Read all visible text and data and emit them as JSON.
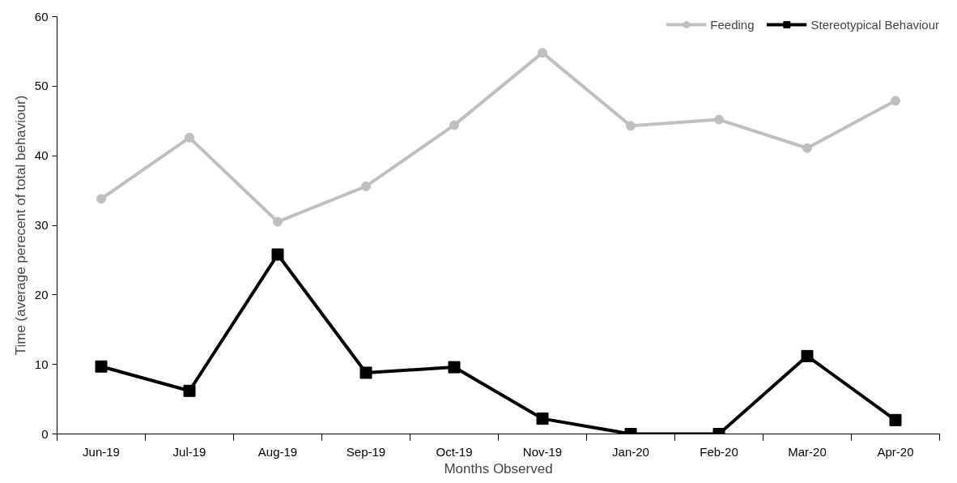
{
  "chart_data": {
    "type": "line",
    "xlabel": "Months Observed",
    "ylabel": "Time (average perecent of total behaviour)",
    "categories": [
      "Jun-19",
      "Jul-19",
      "Aug-19",
      "Sep-19",
      "Oct-19",
      "Nov-19",
      "Jan-20",
      "Feb-20",
      "Mar-20",
      "Apr-20"
    ],
    "series": [
      {
        "name": "Feeding",
        "color": "#bfbfbf",
        "marker": "circle",
        "values": [
          33.8,
          42.6,
          30.5,
          35.6,
          44.4,
          54.8,
          44.3,
          45.2,
          41.1,
          47.9
        ]
      },
      {
        "name": "Stereotypical Behaviour",
        "color": "#000000",
        "marker": "square",
        "values": [
          9.7,
          6.2,
          25.8,
          8.8,
          9.6,
          2.2,
          0,
          0,
          11.2,
          2.0
        ]
      }
    ],
    "ylim": [
      0,
      60
    ],
    "yticks": [
      0,
      10,
      20,
      30,
      40,
      50,
      60
    ],
    "grid": false,
    "legend": "top right",
    "line_style": "solid"
  }
}
